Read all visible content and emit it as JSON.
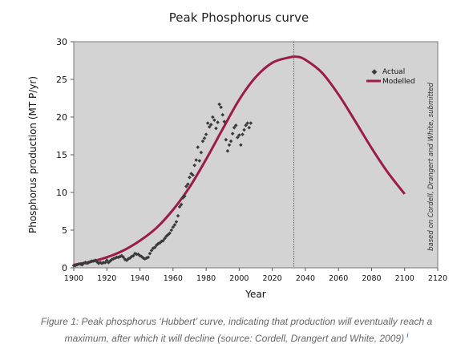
{
  "chart_data": {
    "type": "line",
    "title": "Peak Phosphorus curve",
    "xlabel": "Year",
    "ylabel": "Phosphorus production (MT P/yr)",
    "xlim": [
      1900,
      2120
    ],
    "ylim": [
      0,
      30
    ],
    "x_ticks": [
      1900,
      1920,
      1940,
      1960,
      1980,
      2000,
      2020,
      2040,
      2060,
      2080,
      2100,
      2120
    ],
    "y_ticks": [
      0,
      5,
      10,
      15,
      20,
      25,
      30
    ],
    "peak_marker_x": 2033,
    "grid": false,
    "legend_position": "top-right",
    "source_note": "based on Cordell, Drangert and White, submitted",
    "colors": {
      "plot_bg": "#d3d3d3",
      "actual": "#3a3a3a",
      "modelled": "#9b1b4a"
    },
    "series": [
      {
        "name": "Actual",
        "kind": "scatter",
        "points": [
          [
            1900,
            0.3
          ],
          [
            1901,
            0.3
          ],
          [
            1902,
            0.4
          ],
          [
            1903,
            0.5
          ],
          [
            1904,
            0.5
          ],
          [
            1905,
            0.4
          ],
          [
            1906,
            0.6
          ],
          [
            1907,
            0.7
          ],
          [
            1908,
            0.6
          ],
          [
            1909,
            0.7
          ],
          [
            1910,
            0.8
          ],
          [
            1911,
            0.9
          ],
          [
            1912,
            0.9
          ],
          [
            1913,
            1.0
          ],
          [
            1914,
            0.8
          ],
          [
            1915,
            0.6
          ],
          [
            1916,
            0.7
          ],
          [
            1917,
            0.6
          ],
          [
            1918,
            0.7
          ],
          [
            1919,
            0.7
          ],
          [
            1920,
            1.0
          ],
          [
            1921,
            0.7
          ],
          [
            1922,
            0.9
          ],
          [
            1923,
            1.1
          ],
          [
            1924,
            1.2
          ],
          [
            1925,
            1.3
          ],
          [
            1926,
            1.4
          ],
          [
            1927,
            1.4
          ],
          [
            1928,
            1.5
          ],
          [
            1929,
            1.6
          ],
          [
            1930,
            1.4
          ],
          [
            1931,
            1.1
          ],
          [
            1932,
            1.0
          ],
          [
            1933,
            1.2
          ],
          [
            1934,
            1.3
          ],
          [
            1935,
            1.5
          ],
          [
            1936,
            1.6
          ],
          [
            1937,
            1.9
          ],
          [
            1938,
            1.8
          ],
          [
            1939,
            1.8
          ],
          [
            1940,
            1.6
          ],
          [
            1941,
            1.5
          ],
          [
            1942,
            1.3
          ],
          [
            1943,
            1.2
          ],
          [
            1944,
            1.3
          ],
          [
            1945,
            1.4
          ],
          [
            1946,
            1.9
          ],
          [
            1947,
            2.3
          ],
          [
            1948,
            2.6
          ],
          [
            1949,
            2.7
          ],
          [
            1950,
            3.0
          ],
          [
            1951,
            3.2
          ],
          [
            1952,
            3.3
          ],
          [
            1953,
            3.5
          ],
          [
            1954,
            3.6
          ],
          [
            1955,
            3.9
          ],
          [
            1956,
            4.2
          ],
          [
            1957,
            4.4
          ],
          [
            1958,
            4.6
          ],
          [
            1959,
            5.0
          ],
          [
            1960,
            5.4
          ],
          [
            1961,
            5.7
          ],
          [
            1962,
            6.1
          ],
          [
            1963,
            6.9
          ],
          [
            1964,
            8.1
          ],
          [
            1965,
            8.4
          ],
          [
            1966,
            9.3
          ],
          [
            1967,
            9.5
          ],
          [
            1968,
            10.8
          ],
          [
            1969,
            11.1
          ],
          [
            1970,
            12.0
          ],
          [
            1971,
            12.5
          ],
          [
            1972,
            12.3
          ],
          [
            1973,
            13.6
          ],
          [
            1974,
            14.3
          ],
          [
            1975,
            16.0
          ],
          [
            1976,
            14.2
          ],
          [
            1977,
            15.3
          ],
          [
            1978,
            16.8
          ],
          [
            1979,
            17.2
          ],
          [
            1980,
            17.7
          ],
          [
            1981,
            19.2
          ],
          [
            1982,
            18.7
          ],
          [
            1983,
            19.0
          ],
          [
            1984,
            20.0
          ],
          [
            1985,
            19.6
          ],
          [
            1986,
            18.5
          ],
          [
            1987,
            19.3
          ],
          [
            1988,
            21.7
          ],
          [
            1989,
            21.3
          ],
          [
            1990,
            20.3
          ],
          [
            1991,
            19.4
          ],
          [
            1992,
            17.0
          ],
          [
            1993,
            15.5
          ],
          [
            1994,
            16.3
          ],
          [
            1995,
            16.8
          ],
          [
            1996,
            17.8
          ],
          [
            1997,
            18.6
          ],
          [
            1998,
            18.9
          ],
          [
            1999,
            17.3
          ],
          [
            2000,
            17.6
          ],
          [
            2001,
            16.3
          ],
          [
            2002,
            17.7
          ],
          [
            2003,
            18.3
          ],
          [
            2004,
            18.9
          ],
          [
            2005,
            19.2
          ],
          [
            2006,
            18.6
          ],
          [
            2007,
            19.2
          ]
        ]
      },
      {
        "name": "Modelled",
        "kind": "line",
        "points": [
          [
            1900,
            0.4
          ],
          [
            1910,
            0.8
          ],
          [
            1920,
            1.4
          ],
          [
            1930,
            2.3
          ],
          [
            1940,
            3.6
          ],
          [
            1950,
            5.3
          ],
          [
            1960,
            7.7
          ],
          [
            1970,
            10.7
          ],
          [
            1980,
            14.4
          ],
          [
            1990,
            18.4
          ],
          [
            2000,
            22.3
          ],
          [
            2010,
            25.3
          ],
          [
            2020,
            27.2
          ],
          [
            2030,
            27.9
          ],
          [
            2035,
            28.0
          ],
          [
            2040,
            27.6
          ],
          [
            2050,
            25.9
          ],
          [
            2060,
            23.0
          ],
          [
            2070,
            19.5
          ],
          [
            2080,
            15.9
          ],
          [
            2090,
            12.6
          ],
          [
            2100,
            9.8
          ]
        ]
      }
    ]
  },
  "caption": {
    "line1": "Figure 1: Peak phosphorus ‘Hubbert’ curve, indicating that production will eventually reach a",
    "line2": "maximum, after which it will decline (source: Cordell, Drangert and White, 2009)",
    "ref": "i"
  }
}
